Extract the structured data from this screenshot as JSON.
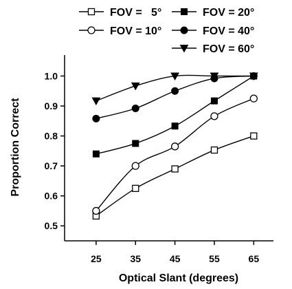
{
  "chart_data": {
    "type": "line",
    "xlabel": "Optical Slant (degrees)",
    "ylabel": "Proportion Correct",
    "x": [
      25,
      35,
      45,
      55,
      65
    ],
    "xlim": [
      17,
      70
    ],
    "ylim": [
      0.45,
      1.07
    ],
    "yticks": [
      0.5,
      0.6,
      0.7,
      0.8,
      0.9,
      1.0
    ],
    "ytick_labels": [
      "0.5",
      "0.6",
      "0.7",
      "0.8",
      "0.9",
      "1.0"
    ],
    "xtick_labels": [
      "25",
      "35",
      "45",
      "55",
      "65"
    ],
    "grid": false,
    "legend_position": "top",
    "series": [
      {
        "name": "FOV =   5°",
        "marker": "open-square",
        "values": [
          0.533,
          0.625,
          0.69,
          0.753,
          0.8
        ]
      },
      {
        "name": "FOV = 10°",
        "marker": "open-circle",
        "values": [
          0.55,
          0.7,
          0.765,
          0.866,
          0.925
        ]
      },
      {
        "name": "FOV = 20°",
        "marker": "filled-square",
        "values": [
          0.74,
          0.775,
          0.833,
          0.917,
          1.0
        ]
      },
      {
        "name": "FOV = 40°",
        "marker": "filled-circle",
        "values": [
          0.858,
          0.892,
          0.95,
          0.992,
          1.0
        ]
      },
      {
        "name": "FOV = 60°",
        "marker": "filled-triangle-down",
        "values": [
          0.917,
          0.967,
          1.0,
          1.0,
          1.0
        ]
      }
    ]
  }
}
